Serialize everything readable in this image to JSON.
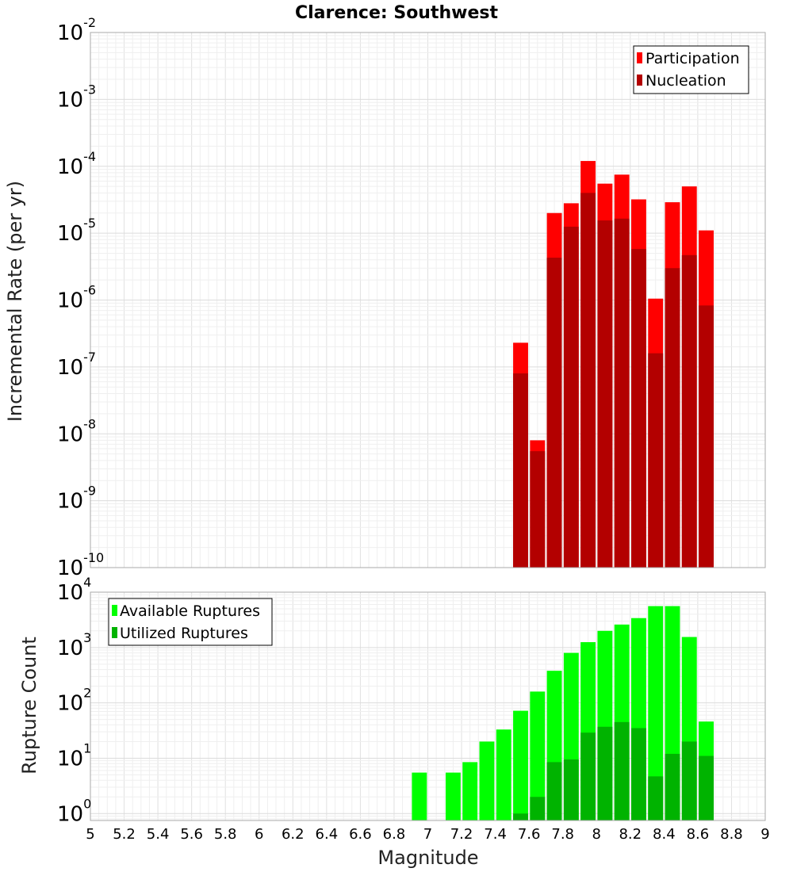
{
  "chart_data": [
    {
      "type": "bar",
      "title": "Clarence: Southwest",
      "ylabel": "Incremental Rate (per yr)",
      "xlabel": "",
      "xlim": [
        5,
        9
      ],
      "ylim": [
        1e-10,
        0.01
      ],
      "yscale": "log",
      "grid": true,
      "legend_position": "top-right",
      "bin_width": 0.1,
      "yticks": [
        {
          "base": "10",
          "exp": "-10",
          "value": 1e-10
        },
        {
          "base": "10",
          "exp": "-9",
          "value": 1e-09
        },
        {
          "base": "10",
          "exp": "-8",
          "value": 1e-08
        },
        {
          "base": "10",
          "exp": "-7",
          "value": 1e-07
        },
        {
          "base": "10",
          "exp": "-6",
          "value": 1e-06
        },
        {
          "base": "10",
          "exp": "-5",
          "value": 1e-05
        },
        {
          "base": "10",
          "exp": "-4",
          "value": 0.0001
        },
        {
          "base": "10",
          "exp": "-3",
          "value": 0.001
        },
        {
          "base": "10",
          "exp": "-2",
          "value": 0.01
        }
      ],
      "x": [
        7.55,
        7.65,
        7.75,
        7.85,
        7.95,
        8.05,
        8.15,
        8.25,
        8.35,
        8.45,
        8.55,
        8.65
      ],
      "series": [
        {
          "name": "Participation",
          "color": "#ff0000",
          "values": [
            2.3e-07,
            8e-09,
            2e-05,
            2.8e-05,
            0.00012,
            5.5e-05,
            7.5e-05,
            3.2e-05,
            1.05e-06,
            2.9e-05,
            5e-05,
            1.1e-05
          ]
        },
        {
          "name": "Nucleation",
          "color": "#b30000",
          "values": [
            8e-08,
            5.5e-09,
            4.3e-06,
            1.25e-05,
            4e-05,
            1.55e-05,
            1.65e-05,
            5.8e-06,
            1.6e-07,
            3e-06,
            4.7e-06,
            8.3e-07
          ]
        }
      ]
    },
    {
      "type": "bar",
      "title": "",
      "ylabel": "Rupture Count",
      "xlabel": "Magnitude",
      "xlim": [
        5,
        9
      ],
      "ylim": [
        0.75,
        10000
      ],
      "yscale": "log",
      "grid": true,
      "legend_position": "top-left",
      "bin_width": 0.1,
      "xticks": [
        "5",
        "5.2",
        "5.4",
        "5.6",
        "5.8",
        "6",
        "6.2",
        "6.4",
        "6.6",
        "6.8",
        "7",
        "7.2",
        "7.4",
        "7.6",
        "7.8",
        "8",
        "8.2",
        "8.4",
        "8.6",
        "8.8",
        "9"
      ],
      "yticks": [
        {
          "base": "10",
          "exp": "0",
          "value": 1
        },
        {
          "base": "10",
          "exp": "1",
          "value": 10
        },
        {
          "base": "10",
          "exp": "2",
          "value": 100
        },
        {
          "base": "10",
          "exp": "3",
          "value": 1000
        },
        {
          "base": "10",
          "exp": "4",
          "value": 10000
        }
      ],
      "x": [
        6.95,
        7.05,
        7.15,
        7.25,
        7.35,
        7.45,
        7.55,
        7.65,
        7.75,
        7.85,
        7.95,
        8.05,
        8.15,
        8.25,
        8.35,
        8.45,
        8.55,
        8.65
      ],
      "series": [
        {
          "name": "Available Ruptures",
          "color": "#00ff00",
          "values": [
            5.5,
            0,
            5.5,
            8.5,
            20,
            33,
            72,
            160,
            380,
            800,
            1250,
            2000,
            2600,
            3400,
            5600,
            5600,
            1550,
            46
          ]
        },
        {
          "name": "Utilized Ruptures",
          "color": "#00b300",
          "values": [
            0,
            0,
            0,
            0,
            0,
            0,
            1,
            2,
            8.5,
            9.5,
            29,
            37,
            45,
            35,
            4.7,
            12,
            20,
            11
          ]
        }
      ]
    }
  ]
}
